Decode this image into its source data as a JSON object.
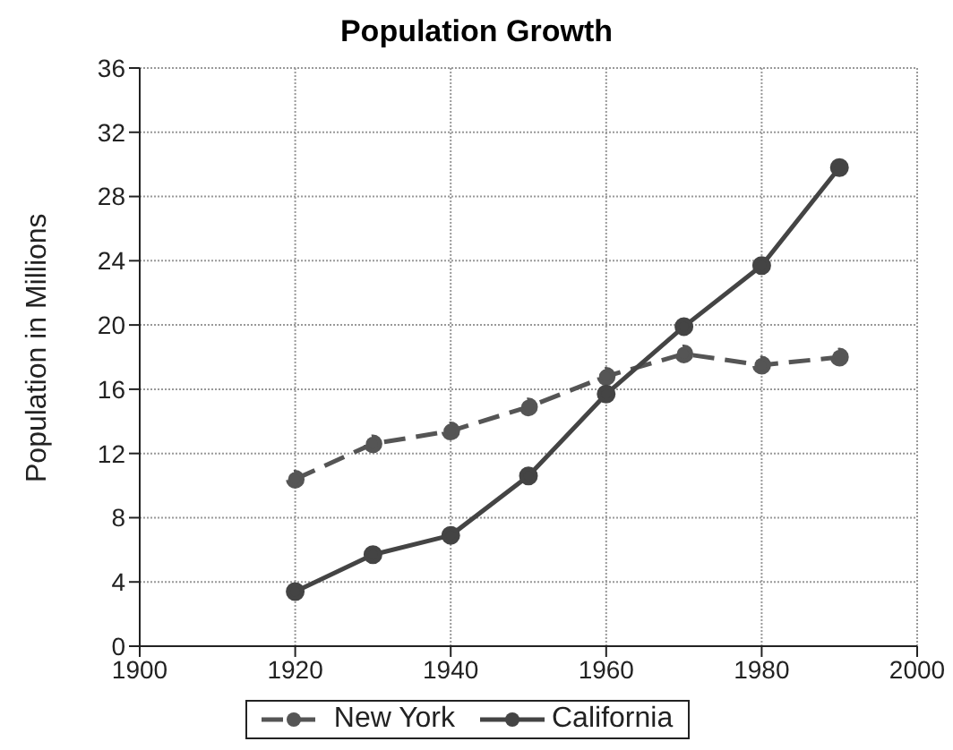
{
  "chart_data": {
    "type": "line",
    "title": "Population Growth",
    "ylabel": "Population in Millions",
    "x": [
      1920,
      1930,
      1940,
      1950,
      1960,
      1970,
      1980,
      1990
    ],
    "xlim": [
      1900,
      2000
    ],
    "xticks": [
      1900,
      1920,
      1940,
      1960,
      1980,
      2000
    ],
    "ylim": [
      0,
      36
    ],
    "yticks": [
      0,
      4,
      8,
      12,
      16,
      20,
      24,
      28,
      32,
      36
    ],
    "series": [
      {
        "name": "New York",
        "color": "#555555",
        "line_style": "dashed",
        "values": [
          10.4,
          12.6,
          13.4,
          14.9,
          16.8,
          18.2,
          17.5,
          18.0
        ]
      },
      {
        "name": "California",
        "color": "#444444",
        "line_style": "solid",
        "values": [
          3.4,
          5.7,
          6.9,
          10.6,
          15.7,
          19.9,
          23.7,
          29.8
        ]
      }
    ],
    "grid": true,
    "legend": "bottom",
    "marker": "circle"
  }
}
